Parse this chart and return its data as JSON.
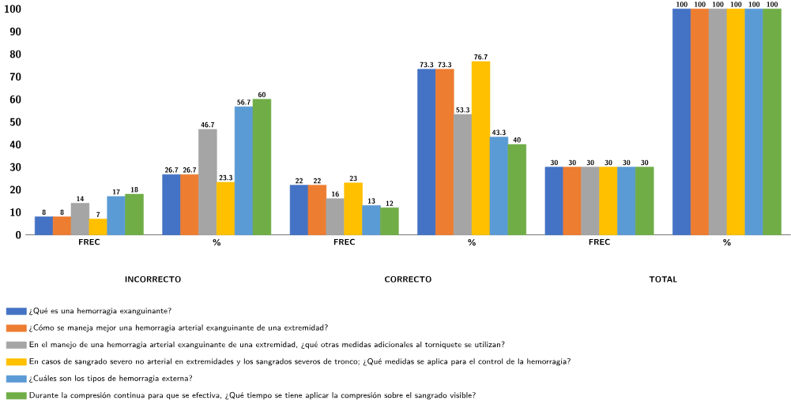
{
  "chart_data": {
    "type": "bar",
    "categories": [
      "FREC",
      "%",
      "FREC",
      "%",
      "FREC",
      "%"
    ],
    "annotations": [
      "INCORRECTO",
      "CORRECTO",
      "TOTAL"
    ],
    "series": [
      {
        "name": "¿Qué es una hemorragia exanguinante?",
        "color": "#4472c4",
        "values": [
          8,
          26.7,
          22,
          73.3,
          30,
          100
        ]
      },
      {
        "name": "¿Cómo se maneja mejor una hemorragia arterial exanguinante de una extremidad?",
        "color": "#ed7d31",
        "values": [
          8,
          26.7,
          22,
          73.3,
          30,
          100
        ]
      },
      {
        "name": "En el manejo de una hemorragia arterial exanguinante de una extremidad, ¿qué otras medidas adicionales al torniquete se utilizan?",
        "color": "#a5a5a5",
        "values": [
          14,
          46.7,
          16,
          53.3,
          30,
          100
        ]
      },
      {
        "name": "En casos de sangrado severo no arterial en extremidades y los sangrados severos de tronco; ¿Qué medidas se aplica para el control de la hemorragia?",
        "color": "#ffc000",
        "values": [
          7,
          23.3,
          23,
          76.7,
          30,
          100
        ]
      },
      {
        "name": "¿Cuáles son los tipos de hemorragia externa?",
        "color": "#5b9bd5",
        "values": [
          17,
          56.7,
          13,
          43.3,
          30,
          100
        ]
      },
      {
        "name": "Durante la compresión continua para que se efectiva, ¿Qué tiempo se tiene aplicar la compresión sobre el sangrado visible?",
        "color": "#70ad47",
        "values": [
          18,
          60,
          12,
          40,
          30,
          100
        ]
      }
    ],
    "ylim": [
      0,
      100
    ],
    "yticks": [
      0,
      10,
      20,
      30,
      40,
      50,
      60,
      70,
      80,
      90,
      100
    ],
    "data_labels": true,
    "legend": "bottom",
    "grid": false
  }
}
